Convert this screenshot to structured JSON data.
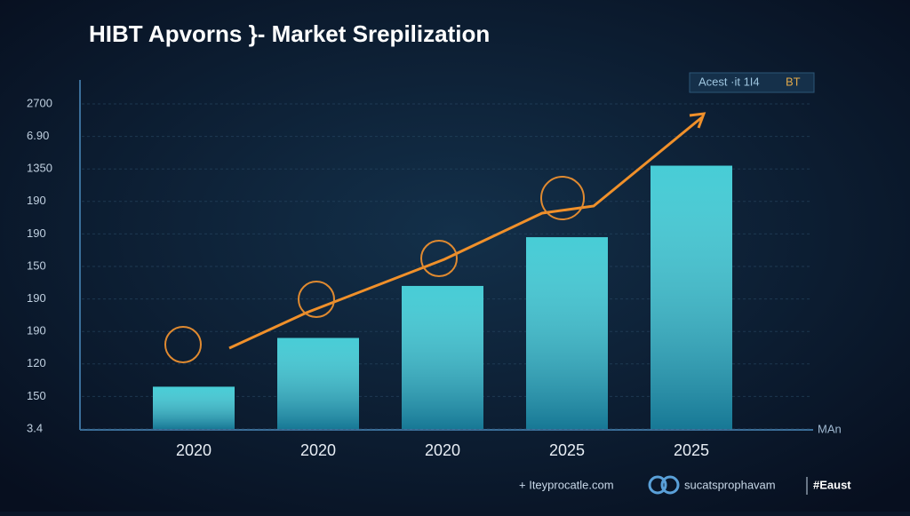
{
  "chart_data": {
    "type": "bar",
    "title": "HIBT Apvorns }- Market Srepilization",
    "legend_label": "Acest ·it 1I4",
    "legend_tag": "BT",
    "y_axis_unit": "MAn",
    "footer": [
      "+ Iteyprocatle.com",
      "sucatsprophavam",
      "#Eaust"
    ],
    "categories": [
      "2020",
      "2020",
      "2020",
      "2025",
      "2025"
    ],
    "values": [
      1.3,
      2.8,
      4.4,
      5.9,
      8.1
    ],
    "color": "#27c4cf",
    "ylim": [
      0,
      10
    ],
    "yticks": [
      {
        "value": 0,
        "label": "3.4"
      },
      {
        "value": 1,
        "label": "150"
      },
      {
        "value": 2,
        "label": "120"
      },
      {
        "value": 3,
        "label": "190"
      },
      {
        "value": 4,
        "label": "190"
      },
      {
        "value": 5,
        "label": "150"
      },
      {
        "value": 6,
        "label": "190"
      },
      {
        "value": 7,
        "label": "190"
      },
      {
        "value": 8,
        "label": "1350"
      },
      {
        "value": 9,
        "label": "6.90"
      },
      {
        "value": 10,
        "label": "2700"
      }
    ],
    "grid": true
  }
}
